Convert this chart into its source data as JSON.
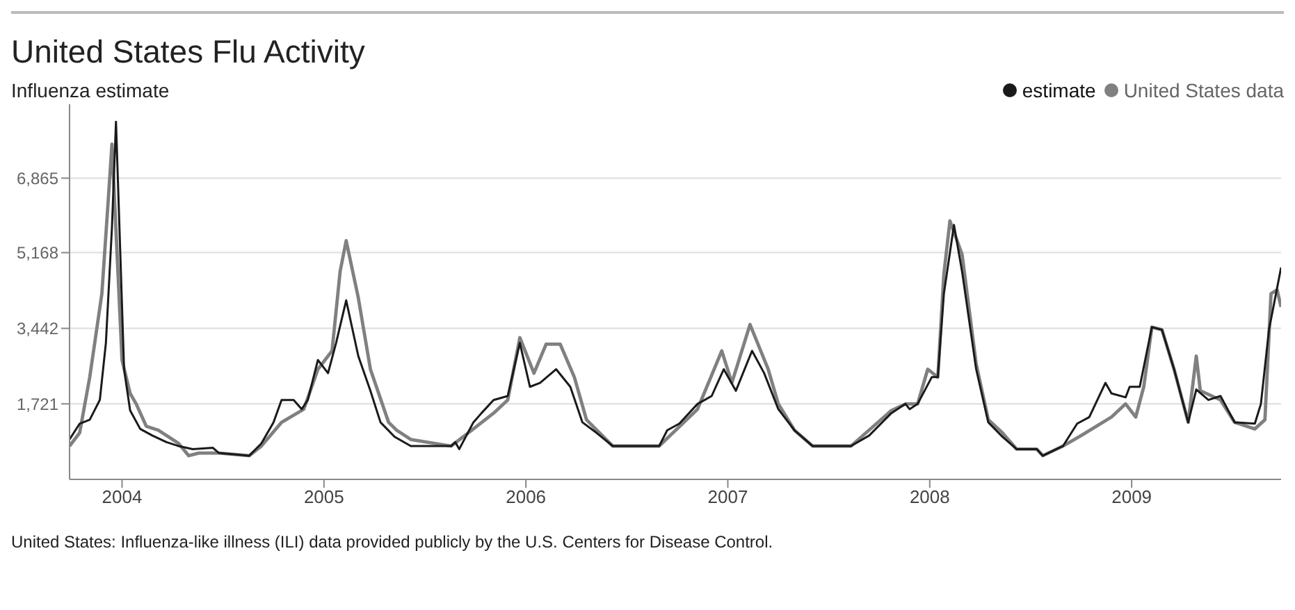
{
  "chart_data": {
    "type": "line",
    "title": "United States Flu Activity",
    "subtitle": "Influenza estimate",
    "annotations": [
      "United States: Influenza-like illness (ILI) data provided publicly by the U.S. Centers for Disease Control."
    ],
    "xlim": [
      2003.74,
      2009.74
    ],
    "xticks": [
      2004,
      2005,
      2006,
      2007,
      2008,
      2009
    ],
    "ylim": [
      0,
      8550
    ],
    "yticks": [
      {
        "value": 1721,
        "label": "1,721"
      },
      {
        "value": 3442,
        "label": "3,442"
      },
      {
        "value": 5168,
        "label": "5,168"
      },
      {
        "value": 6865,
        "label": "6,865"
      }
    ],
    "grid": "y",
    "legend": "top right",
    "marker": "none",
    "series": [
      {
        "name": "estimate",
        "color": "#1a1a1a",
        "x": [
          2003.74,
          2003.79,
          2003.84,
          2003.89,
          2003.92,
          2003.95,
          2003.97,
          2004.01,
          2004.04,
          2004.09,
          2004.15,
          2004.22,
          2004.28,
          2004.35,
          2004.45,
          2004.48,
          2004.63,
          2004.69,
          2004.75,
          2004.79,
          2004.85,
          2004.89,
          2004.92,
          2004.97,
          2005.02,
          2005.06,
          2005.11,
          2005.17,
          2005.23,
          2005.28,
          2005.35,
          2005.43,
          2005.63,
          2005.65,
          2005.67,
          2005.74,
          2005.78,
          2005.84,
          2005.91,
          2005.97,
          2006.02,
          2006.07,
          2006.15,
          2006.22,
          2006.28,
          2006.35,
          2006.43,
          2006.66,
          2006.7,
          2006.76,
          2006.85,
          2006.92,
          2006.98,
          2007.04,
          2007.12,
          2007.18,
          2007.25,
          2007.33,
          2007.42,
          2007.61,
          2007.7,
          2007.81,
          2007.88,
          2007.9,
          2007.94,
          2008.01,
          2008.04,
          2008.07,
          2008.12,
          2008.16,
          2008.23,
          2008.29,
          2008.36,
          2008.43,
          2008.53,
          2008.56,
          2008.66,
          2008.73,
          2008.79,
          2008.87,
          2008.9,
          2008.97,
          2008.99,
          2009.04,
          2009.1,
          2009.15,
          2009.21,
          2009.28,
          2009.32,
          2009.38,
          2009.44,
          2009.51,
          2009.61,
          2009.64,
          2009.68,
          2009.74
        ],
        "values": [
          910,
          1270,
          1360,
          1810,
          3110,
          5740,
          8150,
          2510,
          1570,
          1150,
          1000,
          850,
          760,
          690,
          720,
          600,
          540,
          820,
          1300,
          1810,
          1810,
          1600,
          1810,
          2720,
          2420,
          3110,
          4080,
          2810,
          2020,
          1300,
          970,
          760,
          760,
          850,
          690,
          1300,
          1510,
          1810,
          1900,
          3110,
          2110,
          2200,
          2510,
          2110,
          1300,
          1060,
          760,
          760,
          1120,
          1270,
          1720,
          1900,
          2510,
          2020,
          2930,
          2420,
          1600,
          1120,
          760,
          760,
          1000,
          1510,
          1720,
          1600,
          1720,
          2330,
          2330,
          4230,
          5800,
          4740,
          2510,
          1300,
          970,
          690,
          690,
          540,
          760,
          1270,
          1420,
          2200,
          1960,
          1870,
          2110,
          2110,
          3470,
          3410,
          2510,
          1300,
          2050,
          1810,
          1900,
          1300,
          1270,
          1720,
          3410,
          4830
        ]
      },
      {
        "name": "United States data",
        "color": "#808080",
        "x": [
          2003.74,
          2003.79,
          2003.84,
          2003.9,
          2003.93,
          2003.95,
          2004.0,
          2004.04,
          2004.07,
          2004.12,
          2004.18,
          2004.28,
          2004.33,
          2004.38,
          2004.48,
          2004.63,
          2004.69,
          2004.79,
          2004.9,
          2004.97,
          2005.04,
          2005.08,
          2005.11,
          2005.17,
          2005.23,
          2005.32,
          2005.36,
          2005.43,
          2005.63,
          2005.74,
          2005.84,
          2005.91,
          2005.97,
          2006.04,
          2006.1,
          2006.17,
          2006.24,
          2006.3,
          2006.43,
          2006.66,
          2006.85,
          2006.97,
          2007.02,
          2007.11,
          2007.2,
          2007.25,
          2007.33,
          2007.42,
          2007.61,
          2007.81,
          2007.88,
          2007.94,
          2007.99,
          2008.04,
          2008.07,
          2008.1,
          2008.16,
          2008.23,
          2008.29,
          2008.36,
          2008.43,
          2008.53,
          2008.56,
          2008.66,
          2008.75,
          2008.9,
          2008.97,
          2009.02,
          2009.06,
          2009.1,
          2009.15,
          2009.21,
          2009.28,
          2009.32,
          2009.34,
          2009.44,
          2009.51,
          2009.61,
          2009.66,
          2009.69,
          2009.72,
          2009.74
        ],
        "values": [
          760,
          1060,
          2330,
          4230,
          6250,
          7640,
          2720,
          1960,
          1720,
          1210,
          1120,
          820,
          540,
          600,
          600,
          540,
          760,
          1300,
          1600,
          2510,
          2930,
          4740,
          5440,
          4140,
          2510,
          1300,
          1120,
          910,
          760,
          1150,
          1510,
          1810,
          3230,
          2420,
          3080,
          3080,
          2330,
          1360,
          760,
          760,
          1600,
          2930,
          2200,
          3530,
          2510,
          1720,
          1120,
          760,
          760,
          1570,
          1720,
          1720,
          2510,
          2330,
          4680,
          5890,
          5130,
          2630,
          1360,
          1060,
          690,
          690,
          540,
          760,
          1000,
          1420,
          1720,
          1420,
          2110,
          3470,
          3410,
          2510,
          1300,
          2810,
          2020,
          1810,
          1300,
          1150,
          1360,
          4230,
          4320,
          3930
        ]
      }
    ]
  }
}
